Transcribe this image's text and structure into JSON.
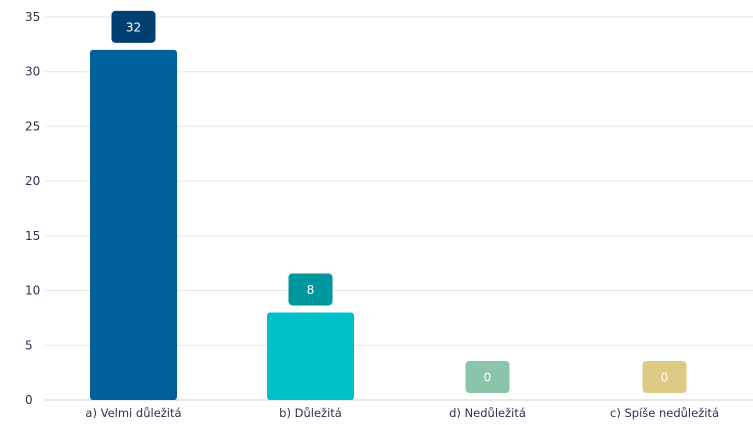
{
  "chart_data": {
    "type": "bar",
    "title": "",
    "xlabel": "",
    "ylabel": "",
    "ylim": [
      0,
      35
    ],
    "yticks": [
      0,
      5,
      10,
      15,
      20,
      25,
      30,
      35
    ],
    "grid": true,
    "categories": [
      "a) Velmi důležitá",
      "b) Důležitá",
      "d) Nedůležitá",
      "c) Spíše nedůležitá"
    ],
    "values": [
      32,
      8,
      0,
      0
    ],
    "bar_colors": [
      "#00609c",
      "#00c0c7",
      "#a5d4bb",
      "#e8d898"
    ],
    "label_colors": [
      "#003f6f",
      "#00969e",
      "#8cc3ab",
      "#ddca83"
    ],
    "gridline_color": "#e6e6e6"
  }
}
